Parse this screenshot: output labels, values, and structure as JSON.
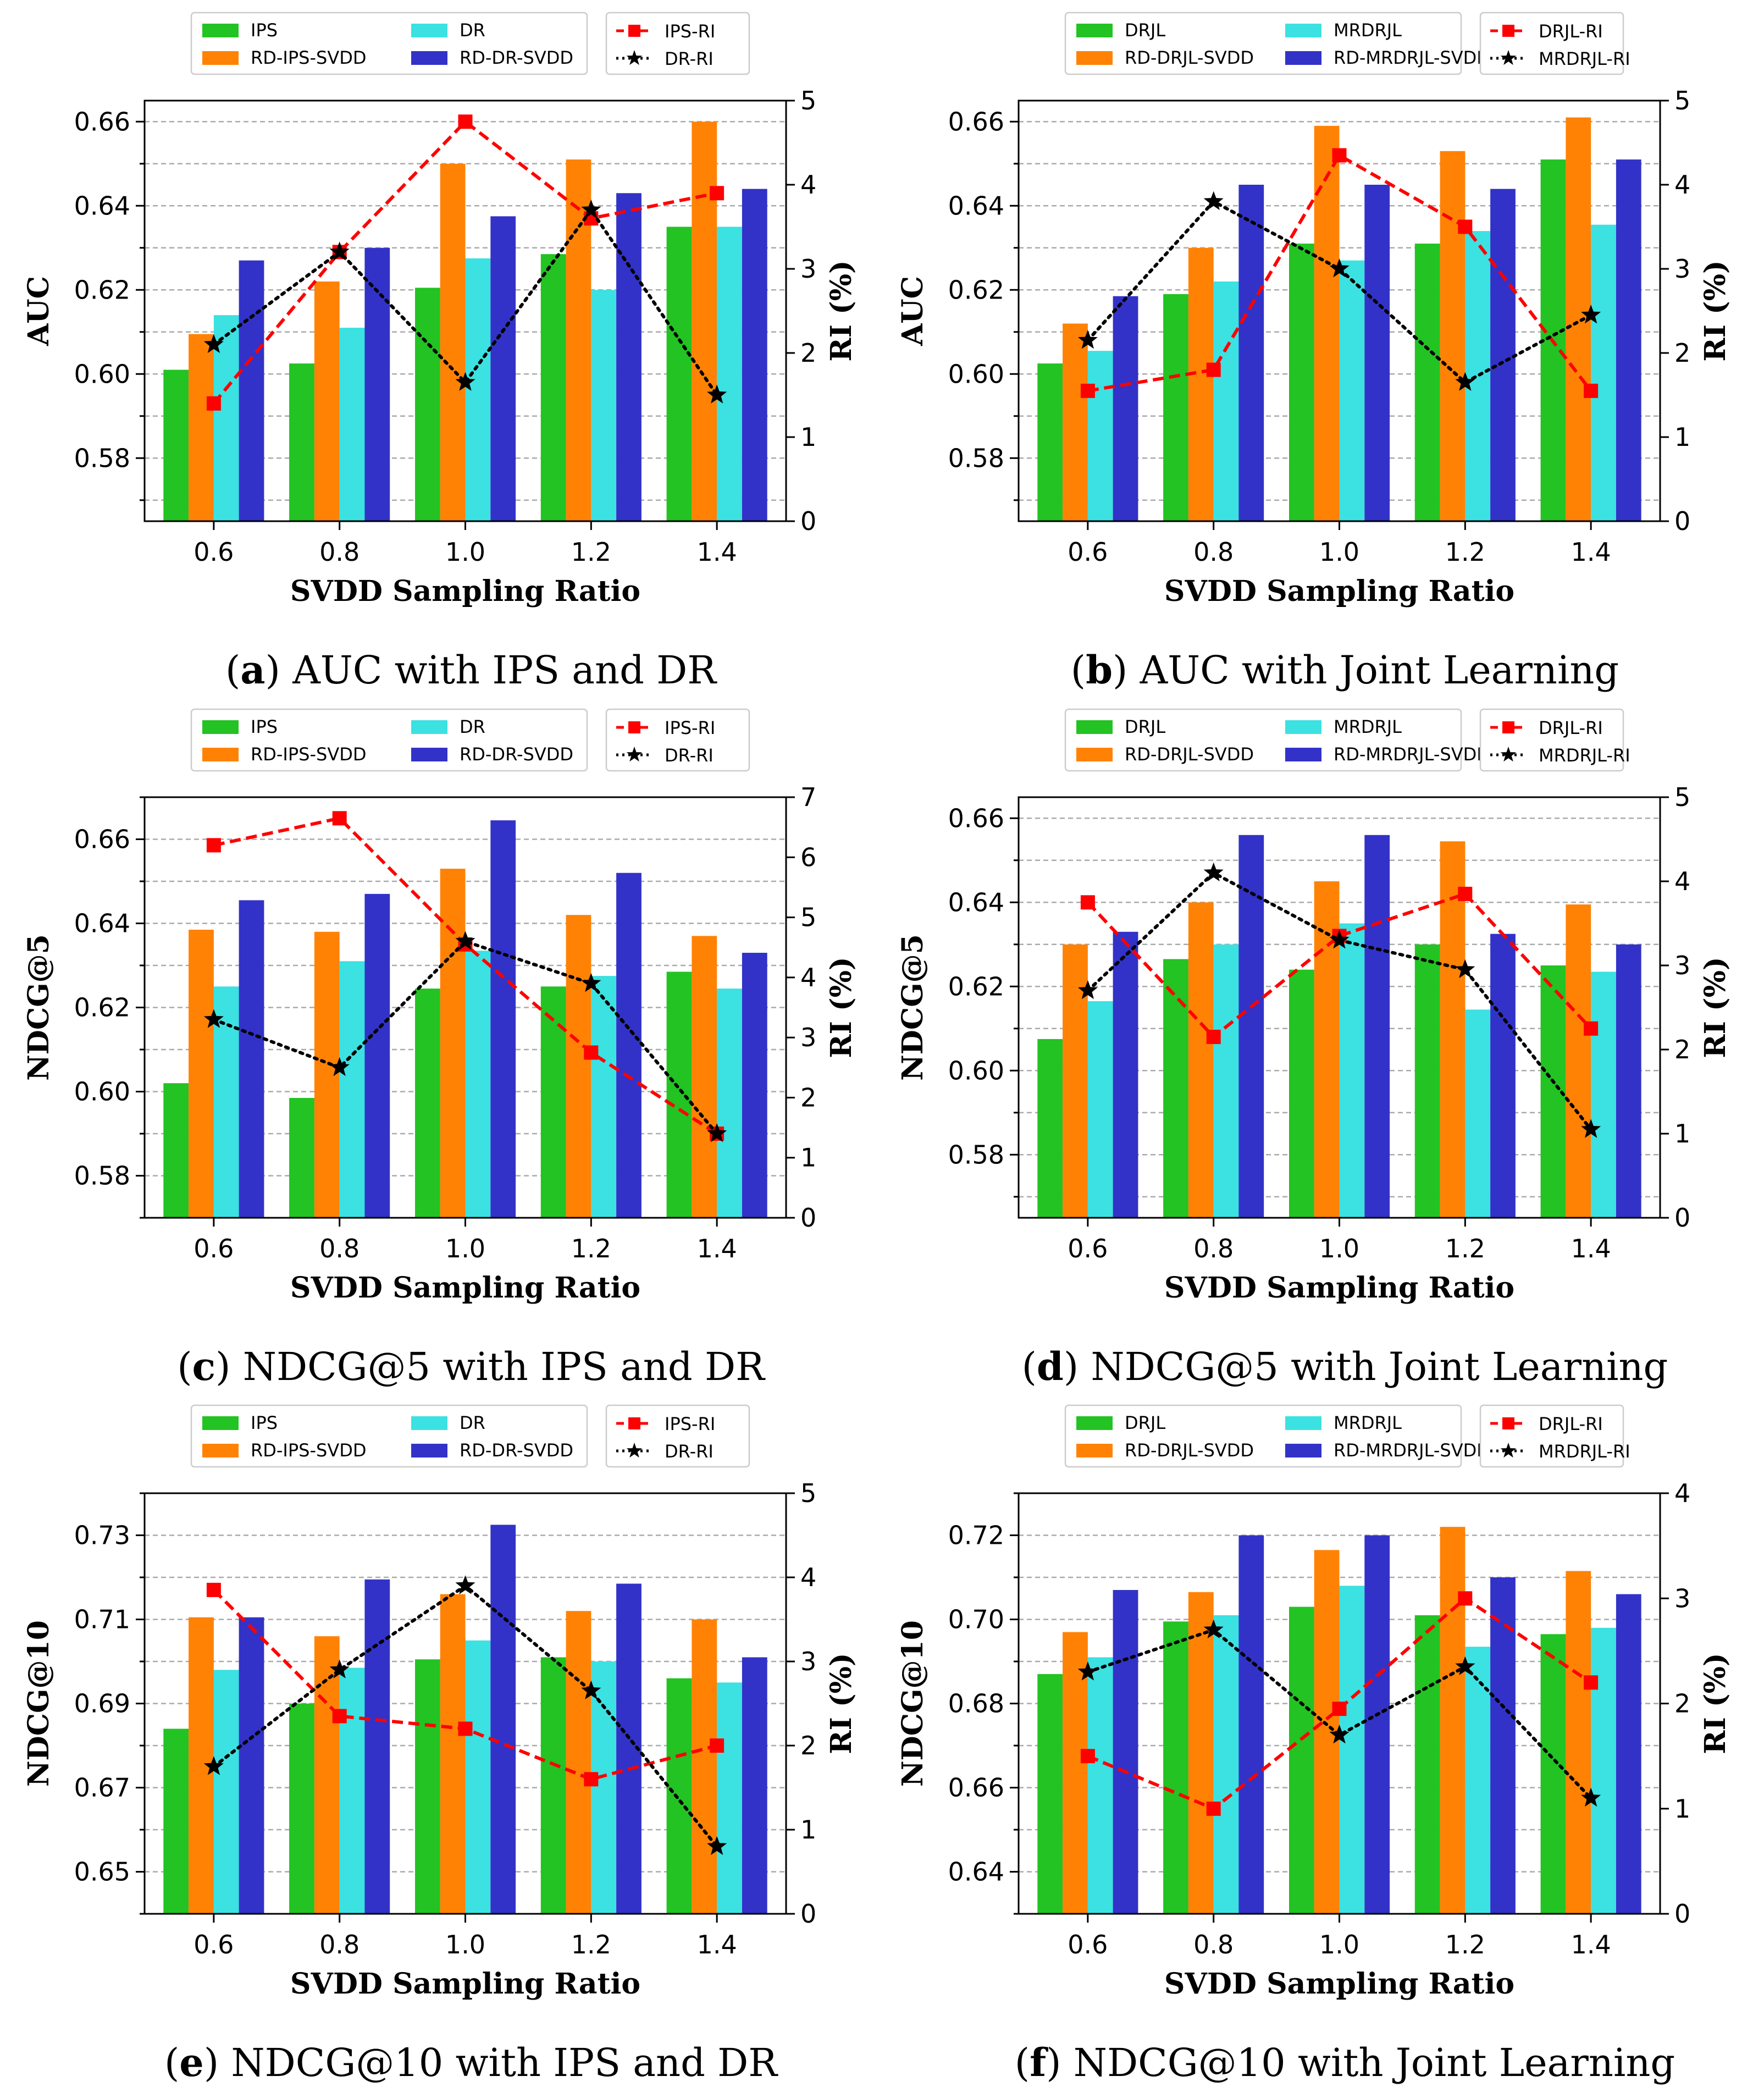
{
  "colors": {
    "base1": "#22c322",
    "rd1": "#ff8205",
    "base2": "#3ce1e1",
    "rd2": "#3232c8",
    "ri1": "#ff0000",
    "ri2": "#000000",
    "grid": "#aaaaaa"
  },
  "chart_data": [
    {
      "type": "bar",
      "panel": "a",
      "caption_label": "a",
      "caption_rest": " AUC with IPS and DR",
      "ylabel": "AUC",
      "y2label": "RI (%)",
      "xlabel": "SVDD Sampling Ratio",
      "categories": [
        "0.6",
        "0.8",
        "1.0",
        "1.2",
        "1.4"
      ],
      "ylim": [
        0.565,
        0.665
      ],
      "yticks": [
        "0.58",
        "0.60",
        "0.62",
        "0.64",
        "0.66"
      ],
      "y2lim": [
        0,
        5
      ],
      "y2ticks": [
        "0",
        "1",
        "2",
        "3",
        "4",
        "5"
      ],
      "series": [
        {
          "name": "IPS",
          "values": [
            0.601,
            0.6025,
            0.6205,
            0.6285,
            0.635
          ]
        },
        {
          "name": "RD-IPS-SVDD",
          "values": [
            0.6095,
            0.622,
            0.65,
            0.651,
            0.66
          ]
        },
        {
          "name": "DR",
          "values": [
            0.614,
            0.611,
            0.6275,
            0.62,
            0.635
          ]
        },
        {
          "name": "RD-DR-SVDD",
          "values": [
            0.627,
            0.63,
            0.6375,
            0.643,
            0.644
          ]
        }
      ],
      "lines": [
        {
          "name": "IPS-RI",
          "values": [
            1.4,
            3.2,
            4.75,
            3.6,
            3.9
          ]
        },
        {
          "name": "DR-RI",
          "values": [
            2.1,
            3.2,
            1.65,
            3.7,
            1.5
          ]
        }
      ]
    },
    {
      "type": "bar",
      "panel": "b",
      "caption_label": "b",
      "caption_rest": " AUC with Joint Learning",
      "ylabel": "AUC",
      "y2label": "RI (%)",
      "xlabel": "SVDD Sampling Ratio",
      "categories": [
        "0.6",
        "0.8",
        "1.0",
        "1.2",
        "1.4"
      ],
      "ylim": [
        0.565,
        0.665
      ],
      "yticks": [
        "0.58",
        "0.60",
        "0.62",
        "0.64",
        "0.66"
      ],
      "y2lim": [
        0,
        5
      ],
      "y2ticks": [
        "0",
        "1",
        "2",
        "3",
        "4",
        "5"
      ],
      "series": [
        {
          "name": "DRJL",
          "values": [
            0.6025,
            0.619,
            0.631,
            0.631,
            0.651
          ]
        },
        {
          "name": "RD-DRJL-SVDD",
          "values": [
            0.612,
            0.63,
            0.659,
            0.653,
            0.661
          ]
        },
        {
          "name": "MRDRJL",
          "values": [
            0.6055,
            0.622,
            0.627,
            0.634,
            0.6355
          ]
        },
        {
          "name": "RD-MRDRJL-SVDD",
          "values": [
            0.6185,
            0.645,
            0.645,
            0.644,
            0.651
          ]
        }
      ],
      "lines": [
        {
          "name": "DRJL-RI",
          "values": [
            1.55,
            1.8,
            4.35,
            3.5,
            1.55
          ]
        },
        {
          "name": "MRDRJL-RI",
          "values": [
            2.15,
            3.8,
            3.0,
            1.65,
            2.45
          ]
        }
      ]
    },
    {
      "type": "bar",
      "panel": "c",
      "caption_label": "c",
      "caption_rest": " NDCG@5 with IPS and DR",
      "ylabel": "NDCG@5",
      "y2label": "RI (%)",
      "xlabel": "SVDD Sampling Ratio",
      "categories": [
        "0.6",
        "0.8",
        "1.0",
        "1.2",
        "1.4"
      ],
      "ylim": [
        0.57,
        0.67
      ],
      "yticks": [
        "0.58",
        "0.60",
        "0.62",
        "0.64",
        "0.66"
      ],
      "y2lim": [
        0,
        7
      ],
      "y2ticks": [
        "0",
        "1",
        "2",
        "3",
        "4",
        "5",
        "6",
        "7"
      ],
      "series": [
        {
          "name": "IPS",
          "values": [
            0.602,
            0.5985,
            0.6245,
            0.625,
            0.6285
          ]
        },
        {
          "name": "RD-IPS-SVDD",
          "values": [
            0.6385,
            0.638,
            0.653,
            0.642,
            0.637
          ]
        },
        {
          "name": "DR",
          "values": [
            0.625,
            0.631,
            0.6335,
            0.6275,
            0.6245
          ]
        },
        {
          "name": "RD-DR-SVDD",
          "values": [
            0.6455,
            0.647,
            0.6645,
            0.652,
            0.633
          ]
        }
      ],
      "lines": [
        {
          "name": "IPS-RI",
          "values": [
            6.2,
            6.65,
            4.55,
            2.75,
            1.4
          ]
        },
        {
          "name": "DR-RI",
          "values": [
            3.3,
            2.5,
            4.6,
            3.9,
            1.4
          ]
        }
      ]
    },
    {
      "type": "bar",
      "panel": "d",
      "caption_label": "d",
      "caption_rest": " NDCG@5 with Joint Learning",
      "ylabel": "NDCG@5",
      "y2label": "RI (%)",
      "xlabel": "SVDD Sampling Ratio",
      "categories": [
        "0.6",
        "0.8",
        "1.0",
        "1.2",
        "1.4"
      ],
      "ylim": [
        0.565,
        0.665
      ],
      "yticks": [
        "0.58",
        "0.60",
        "0.62",
        "0.64",
        "0.66"
      ],
      "y2lim": [
        0,
        5
      ],
      "y2ticks": [
        "0",
        "1",
        "2",
        "3",
        "4",
        "5"
      ],
      "series": [
        {
          "name": "DRJL",
          "values": [
            0.6075,
            0.6265,
            0.624,
            0.63,
            0.625
          ]
        },
        {
          "name": "RD-DRJL-SVDD",
          "values": [
            0.63,
            0.64,
            0.645,
            0.6545,
            0.6395
          ]
        },
        {
          "name": "MRDRJL",
          "values": [
            0.6165,
            0.63,
            0.635,
            0.6145,
            0.6235
          ]
        },
        {
          "name": "RD-MRDRJL-SVDD",
          "values": [
            0.633,
            0.656,
            0.656,
            0.6325,
            0.63
          ]
        }
      ],
      "lines": [
        {
          "name": "DRJL-RI",
          "values": [
            3.75,
            2.15,
            3.35,
            3.85,
            2.25
          ]
        },
        {
          "name": "MRDRJL-RI",
          "values": [
            2.7,
            4.1,
            3.3,
            2.95,
            1.05
          ]
        }
      ]
    },
    {
      "type": "bar",
      "panel": "e",
      "caption_label": "e",
      "caption_rest": " NDCG@10 with IPS and DR",
      "ylabel": "NDCG@10",
      "y2label": "RI (%)",
      "xlabel": "SVDD Sampling Ratio",
      "categories": [
        "0.6",
        "0.8",
        "1.0",
        "1.2",
        "1.4"
      ],
      "ylim": [
        0.64,
        0.74
      ],
      "yticks": [
        "0.65",
        "0.67",
        "0.69",
        "0.71",
        "0.73"
      ],
      "y2lim": [
        0,
        5
      ],
      "y2ticks": [
        "0",
        "1",
        "2",
        "3",
        "4",
        "5"
      ],
      "series": [
        {
          "name": "IPS",
          "values": [
            0.684,
            0.69,
            0.7005,
            0.701,
            0.696
          ]
        },
        {
          "name": "RD-IPS-SVDD",
          "values": [
            0.7105,
            0.706,
            0.716,
            0.712,
            0.71
          ]
        },
        {
          "name": "DR",
          "values": [
            0.698,
            0.6985,
            0.705,
            0.7,
            0.695
          ]
        },
        {
          "name": "RD-DR-SVDD",
          "values": [
            0.7105,
            0.7195,
            0.7325,
            0.7185,
            0.701
          ]
        }
      ],
      "lines": [
        {
          "name": "IPS-RI",
          "values": [
            3.85,
            2.35,
            2.2,
            1.6,
            2.0
          ]
        },
        {
          "name": "DR-RI",
          "values": [
            1.75,
            2.9,
            3.9,
            2.65,
            0.8
          ]
        }
      ]
    },
    {
      "type": "bar",
      "panel": "f",
      "caption_label": "f",
      "caption_rest": " NDCG@10 with Joint Learning",
      "ylabel": "NDCG@10",
      "y2label": "RI (%)",
      "xlabel": "SVDD Sampling Ratio",
      "categories": [
        "0.6",
        "0.8",
        "1.0",
        "1.2",
        "1.4"
      ],
      "ylim": [
        0.63,
        0.73
      ],
      "yticks": [
        "0.64",
        "0.66",
        "0.68",
        "0.70",
        "0.72"
      ],
      "y2lim": [
        0,
        4
      ],
      "y2ticks": [
        "0",
        "1",
        "2",
        "3",
        "4"
      ],
      "series": [
        {
          "name": "DRJL",
          "values": [
            0.687,
            0.6995,
            0.703,
            0.701,
            0.6965
          ]
        },
        {
          "name": "RD-DRJL-SVDD",
          "values": [
            0.697,
            0.7065,
            0.7165,
            0.722,
            0.7115
          ]
        },
        {
          "name": "MRDRJL",
          "values": [
            0.691,
            0.701,
            0.708,
            0.6935,
            0.698
          ]
        },
        {
          "name": "RD-MRDRJL-SVDD",
          "values": [
            0.707,
            0.72,
            0.72,
            0.71,
            0.706
          ]
        }
      ],
      "lines": [
        {
          "name": "DRJL-RI",
          "values": [
            1.5,
            1.0,
            1.95,
            3.0,
            2.2
          ]
        },
        {
          "name": "MRDRJL-RI",
          "values": [
            2.3,
            2.7,
            1.7,
            2.35,
            1.1
          ]
        }
      ]
    }
  ]
}
